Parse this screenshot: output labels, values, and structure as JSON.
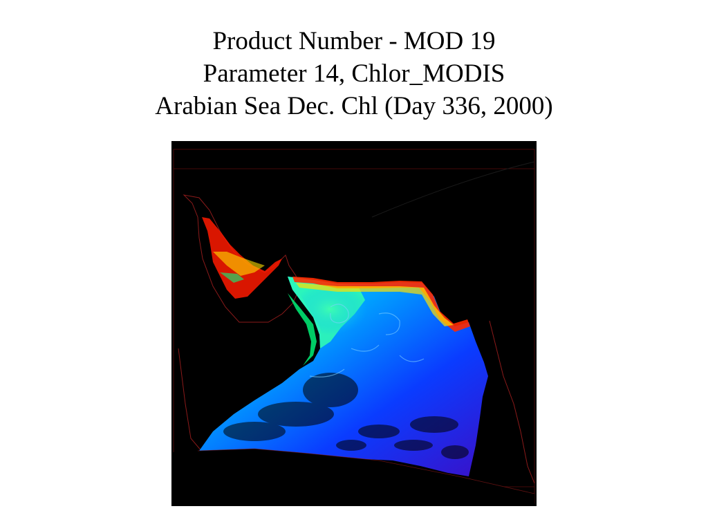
{
  "slide": {
    "title_lines": [
      "Product Number - MOD 19",
      "Parameter 14, Chlor_MODIS",
      "Arabian Sea Dec. Chl (Day 336, 2000)"
    ]
  },
  "map": {
    "product": "MOD 19",
    "parameter": "Chlor_MODIS",
    "region": "Arabian Sea",
    "day_of_year": 336,
    "year": 2000,
    "colors": {
      "background": "#000000",
      "coastline": "#8b1a1a",
      "grid": "#5a0d0d",
      "high_chl": "#ff1a00",
      "mid_high_chl": "#ffe000",
      "mid_chl": "#00ff80",
      "low_mid_chl": "#00b4ff",
      "low_chl": "#0a3cff",
      "lowest_chl": "#3a10c8"
    }
  }
}
